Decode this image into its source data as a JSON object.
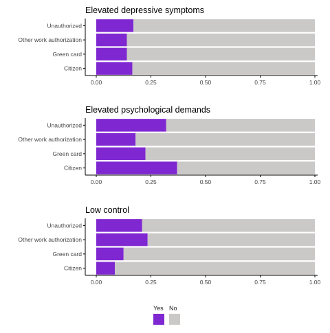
{
  "chart_data": [
    {
      "type": "bar",
      "orientation": "horizontal",
      "stacked": "fill",
      "title": "Elevated depressive symptoms",
      "categories": [
        "Unauthorized",
        "Other work authorization",
        "Green card",
        "Citizen"
      ],
      "series": [
        {
          "name": "Yes",
          "values": [
            0.17,
            0.14,
            0.14,
            0.165
          ]
        },
        {
          "name": "No",
          "values": [
            0.83,
            0.86,
            0.86,
            0.835
          ]
        }
      ],
      "xlim": [
        0,
        1
      ],
      "xticks": [
        "0.00",
        "0.25",
        "0.50",
        "0.75",
        "1.00"
      ],
      "grid": false
    },
    {
      "type": "bar",
      "orientation": "horizontal",
      "stacked": "fill",
      "title": "Elevated psychological demands",
      "categories": [
        "Unauthorized",
        "Other work authorization",
        "Green card",
        "Citizen"
      ],
      "series": [
        {
          "name": "Yes",
          "values": [
            0.32,
            0.18,
            0.225,
            0.37
          ]
        },
        {
          "name": "No",
          "values": [
            0.68,
            0.82,
            0.775,
            0.63
          ]
        }
      ],
      "xlim": [
        0,
        1
      ],
      "xticks": [
        "0.00",
        "0.25",
        "0.50",
        "0.75",
        "1.00"
      ],
      "grid": false
    },
    {
      "type": "bar",
      "orientation": "horizontal",
      "stacked": "fill",
      "title": "Low control",
      "categories": [
        "Unauthorized",
        "Other work authorization",
        "Green card",
        "Citizen"
      ],
      "series": [
        {
          "name": "Yes",
          "values": [
            0.21,
            0.235,
            0.125,
            0.085
          ]
        },
        {
          "name": "No",
          "values": [
            0.79,
            0.765,
            0.875,
            0.915
          ]
        }
      ],
      "xlim": [
        0,
        1
      ],
      "xticks": [
        "0.00",
        "0.25",
        "0.50",
        "0.75",
        "1.00"
      ],
      "grid": false
    }
  ],
  "legend": {
    "placement": "bottom",
    "items": [
      {
        "label": "Yes",
        "color": "#7f28d1"
      },
      {
        "label": "No",
        "color": "#cbc8c8"
      }
    ]
  },
  "colors": {
    "yes": "#7f28d1",
    "no": "#cbc8c8",
    "axis": "#000000"
  }
}
